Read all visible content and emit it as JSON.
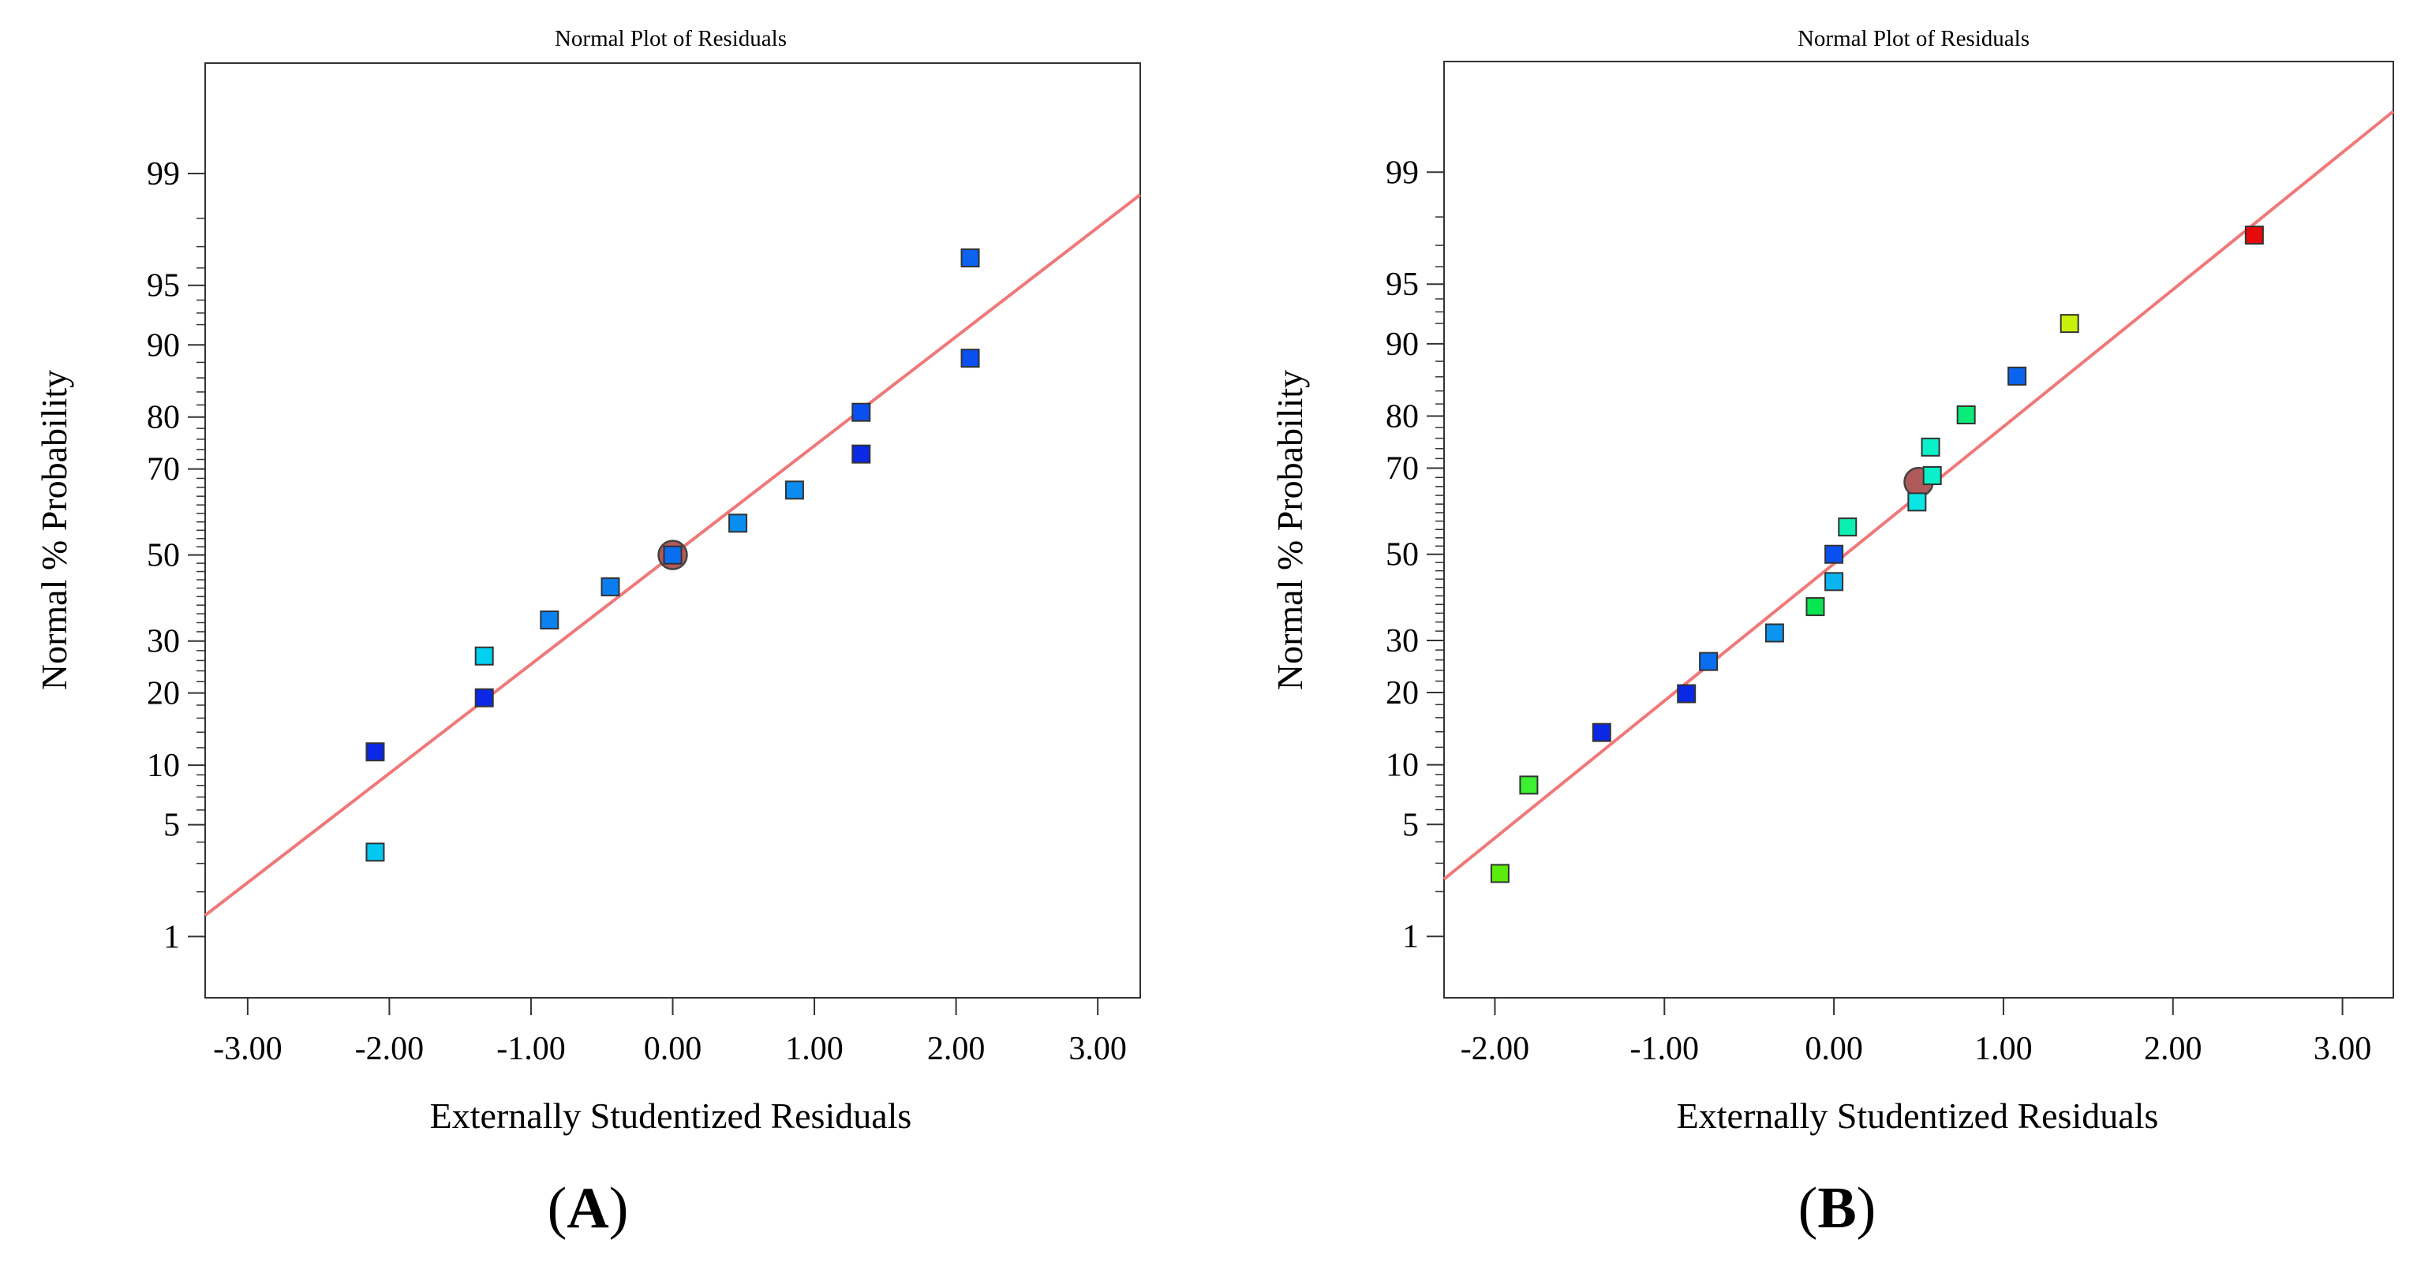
{
  "chart_data": [
    {
      "type": "scatter",
      "panel_label": "A",
      "title": "Normal Plot of Residuals",
      "xlabel": "Externally Studentized Residuals",
      "ylabel": "Normal % Probability",
      "xlim": [
        -3.3,
        3.3
      ],
      "x_ticks": [
        "-3.00",
        "-2.00",
        "-1.00",
        "0.00",
        "1.00",
        "2.00",
        "3.00"
      ],
      "y_ticks": [
        "1",
        "5",
        "10",
        "20",
        "30",
        "50",
        "70",
        "80",
        "90",
        "95",
        "99"
      ],
      "fit_line": {
        "x": [
          -3.3,
          3.3
        ],
        "y": [
          1.4,
          98.6
        ],
        "color": "#f07878"
      },
      "points": [
        {
          "x": -2.1,
          "y": 3.5,
          "color": "#00c8f0"
        },
        {
          "x": -2.1,
          "y": 11.5,
          "color": "#0a28e6"
        },
        {
          "x": -1.33,
          "y": 19.2,
          "color": "#0a28e6"
        },
        {
          "x": -1.33,
          "y": 26.9,
          "color": "#00d2f0"
        },
        {
          "x": -0.87,
          "y": 34.6,
          "color": "#0a82f0"
        },
        {
          "x": -0.44,
          "y": 42.3,
          "color": "#0a7ef0"
        },
        {
          "x": 0.0,
          "y": 50.0,
          "color": "#0a6ef0"
        },
        {
          "x": 0.46,
          "y": 57.7,
          "color": "#0a8cf0"
        },
        {
          "x": 0.86,
          "y": 65.4,
          "color": "#0a8cf0"
        },
        {
          "x": 1.33,
          "y": 73.1,
          "color": "#0a28e6"
        },
        {
          "x": 1.33,
          "y": 80.8,
          "color": "#0a50f0"
        },
        {
          "x": 2.1,
          "y": 88.5,
          "color": "#0a50f0"
        },
        {
          "x": 2.1,
          "y": 96.5,
          "color": "#0a64f0"
        }
      ],
      "highlight_point": {
        "x": 0.0,
        "y": 50.0,
        "color": "#b05a5a"
      }
    },
    {
      "type": "scatter",
      "panel_label": "B",
      "title": "Normal Plot of Residuals",
      "xlabel": "Externally Studentized Residuals",
      "ylabel": "Normal % Probability",
      "xlim": [
        -2.3,
        3.3
      ],
      "x_ticks": [
        "-2.00",
        "-1.00",
        "0.00",
        "1.00",
        "2.00",
        "3.00"
      ],
      "y_ticks": [
        "1",
        "5",
        "10",
        "20",
        "30",
        "50",
        "70",
        "80",
        "90",
        "95",
        "99"
      ],
      "fit_line": {
        "x": [
          -2.3,
          3.3
        ],
        "y": [
          2.4,
          99.65
        ],
        "color": "#f07878"
      },
      "points": [
        {
          "x": -1.97,
          "y": 2.6,
          "color": "#5aec0a"
        },
        {
          "x": -1.8,
          "y": 8.0,
          "color": "#3cf032"
        },
        {
          "x": -1.37,
          "y": 13.9,
          "color": "#0a28e6"
        },
        {
          "x": -0.87,
          "y": 19.8,
          "color": "#0a28e6"
        },
        {
          "x": -0.74,
          "y": 25.7,
          "color": "#0a6ef0"
        },
        {
          "x": -0.35,
          "y": 31.6,
          "color": "#0a96f0"
        },
        {
          "x": -0.11,
          "y": 37.5,
          "color": "#0ae650"
        },
        {
          "x": 0.0,
          "y": 43.4,
          "color": "#0ab4f0"
        },
        {
          "x": 0.0,
          "y": 50.0,
          "color": "#0a50f0"
        },
        {
          "x": 0.08,
          "y": 56.6,
          "color": "#0af0b0"
        },
        {
          "x": 0.49,
          "y": 62.5,
          "color": "#0ae6e6"
        },
        {
          "x": 0.58,
          "y": 68.4,
          "color": "#0af0c8"
        },
        {
          "x": 0.57,
          "y": 74.3,
          "color": "#0af0c8"
        },
        {
          "x": 0.78,
          "y": 80.2,
          "color": "#0aeb78"
        },
        {
          "x": 1.08,
          "y": 86.1,
          "color": "#0a64f0"
        },
        {
          "x": 1.39,
          "y": 92.0,
          "color": "#c8f00a"
        },
        {
          "x": 2.48,
          "y": 97.4,
          "color": "#e60a0a"
        }
      ],
      "highlight_point": {
        "x": 0.5,
        "y": 67.0,
        "color": "#b05a5a"
      }
    }
  ]
}
